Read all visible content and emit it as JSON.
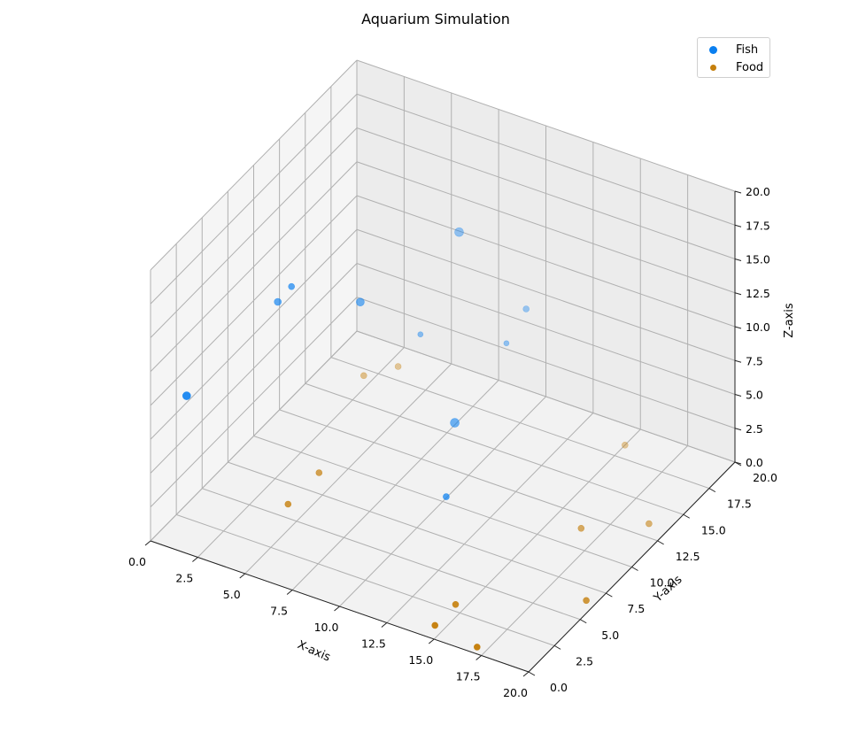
{
  "chart_data": {
    "type": "scatter",
    "title": "Aquarium Simulation",
    "xlabel": "X-axis",
    "ylabel": "Y-axis",
    "zlabel": "Z-axis",
    "xlim": [
      0,
      20
    ],
    "ylim": [
      0,
      20
    ],
    "zlim": [
      0,
      20
    ],
    "xticks": [
      "0.0",
      "2.5",
      "5.0",
      "7.5",
      "10.0",
      "12.5",
      "15.0",
      "17.5",
      "20.0"
    ],
    "yticks": [
      "0.0",
      "2.5",
      "5.0",
      "7.5",
      "10.0",
      "12.5",
      "15.0",
      "17.5",
      "20.0"
    ],
    "zticks": [
      "0.0",
      "2.5",
      "5.0",
      "7.5",
      "10.0",
      "12.5",
      "15.0",
      "17.5",
      "20.0"
    ],
    "grid": true,
    "legend_position": "top-right",
    "series": [
      {
        "name": "Fish",
        "color": "#0a7ff0",
        "points": [
          {
            "x": 11.0,
            "y": 8.5,
            "z": 2.0,
            "size": 7
          },
          {
            "x": 9.0,
            "y": 13.0,
            "z": 3.0,
            "size": 10
          },
          {
            "x": 0.0,
            "y": 3.5,
            "z": 8.0,
            "size": 9
          },
          {
            "x": 2.0,
            "y": 10.0,
            "z": 12.0,
            "size": 7
          },
          {
            "x": 4.0,
            "y": 13.0,
            "z": 9.5,
            "size": 9
          },
          {
            "x": 1.0,
            "y": 10.5,
            "z": 10.0,
            "size": 8
          },
          {
            "x": 6.5,
            "y": 18.0,
            "z": 12.0,
            "size": 10
          },
          {
            "x": 5.0,
            "y": 17.0,
            "z": 4.5,
            "size": 6
          },
          {
            "x": 9.0,
            "y": 18.0,
            "z": 5.0,
            "size": 6
          },
          {
            "x": 9.5,
            "y": 19.0,
            "z": 7.0,
            "size": 7
          }
        ]
      },
      {
        "name": "Food",
        "color": "#c57f0c",
        "points": [
          {
            "x": 17.0,
            "y": 0.5,
            "z": 0.0,
            "size": 7
          },
          {
            "x": 14.5,
            "y": 1.0,
            "z": 0.0,
            "size": 7
          },
          {
            "x": 14.5,
            "y": 3.0,
            "z": 0.0,
            "size": 7
          },
          {
            "x": 19.5,
            "y": 6.5,
            "z": 0.0,
            "size": 7
          },
          {
            "x": 16.5,
            "y": 11.5,
            "z": 0.0,
            "size": 7
          },
          {
            "x": 19.0,
            "y": 13.5,
            "z": 0.0,
            "size": 7
          },
          {
            "x": 4.0,
            "y": 6.0,
            "z": 0.0,
            "size": 7
          },
          {
            "x": 4.0,
            "y": 9.0,
            "z": 0.0,
            "size": 7
          },
          {
            "x": 15.0,
            "y": 18.5,
            "z": 0.0,
            "size": 7
          },
          {
            "x": 2.0,
            "y": 17.0,
            "z": 0.0,
            "size": 7
          },
          {
            "x": 3.0,
            "y": 18.5,
            "z": 0.0,
            "size": 7
          }
        ]
      }
    ]
  }
}
